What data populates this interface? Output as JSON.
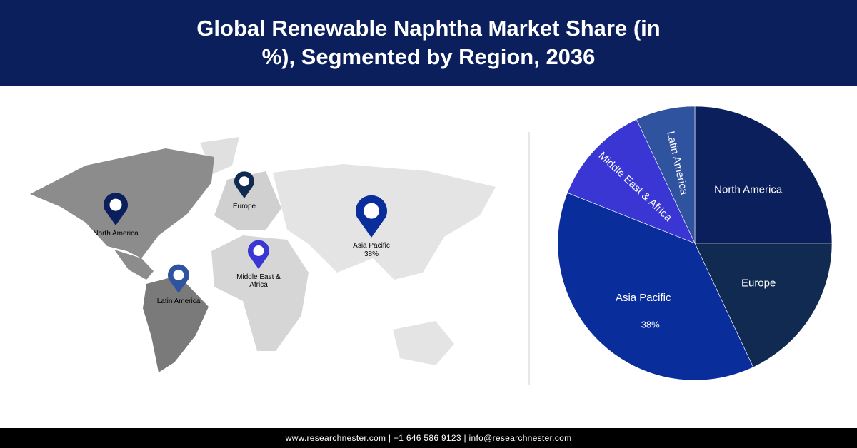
{
  "chart_data": {
    "type": "pie",
    "title": "Global Renewable Naphtha Market Share (in %), Segmented by Region, 2036",
    "categories": [
      "North America",
      "Europe",
      "Asia Pacific",
      "Middle East & Africa",
      "Latin America"
    ],
    "values": [
      25,
      18,
      38,
      12,
      7
    ],
    "value_labels": [
      null,
      null,
      "38%",
      null,
      null
    ],
    "colors": [
      "#0b1f5c",
      "#112a52",
      "#0a2d9c",
      "#3a36d4",
      "#2f539e"
    ]
  },
  "footer": "www.researchnester.com | +1 646 586 9123 | info@researchnester.com"
}
